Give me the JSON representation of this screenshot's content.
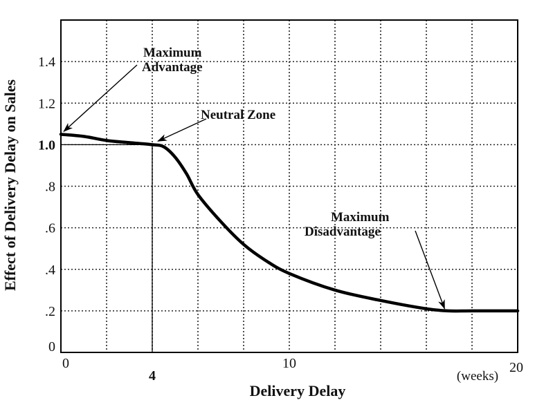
{
  "chart_data": {
    "type": "line",
    "title": "",
    "xlabel": "Delivery Delay",
    "xunit": "(weeks)",
    "ylabel": "Effect of Delivery Delay on Sales",
    "xlim": [
      0,
      20
    ],
    "ylim": [
      0,
      1.6
    ],
    "grid": true,
    "x_ticks": [
      {
        "v": 0,
        "label": "0",
        "bold": false
      },
      {
        "v": 4,
        "label": "4",
        "bold": true
      },
      {
        "v": 10,
        "label": "10",
        "bold": false
      },
      {
        "v": 20,
        "label": "20",
        "bold": false
      }
    ],
    "y_ticks": [
      {
        "v": 0,
        "label": "0",
        "bold": false
      },
      {
        "v": 0.2,
        "label": ".2",
        "bold": false
      },
      {
        "v": 0.4,
        "label": ".4",
        "bold": false
      },
      {
        "v": 0.6,
        "label": ".6",
        "bold": false
      },
      {
        "v": 0.8,
        "label": ".8",
        "bold": false
      },
      {
        "v": 1.0,
        "label": "1.0",
        "bold": true
      },
      {
        "v": 1.2,
        "label": "1.2",
        "bold": false
      },
      {
        "v": 1.4,
        "label": "1.4",
        "bold": false
      }
    ],
    "x": [
      0,
      1,
      2,
      3,
      4,
      4.5,
      5,
      5.5,
      6,
      7,
      8,
      9,
      10,
      12,
      14,
      16,
      17,
      18,
      20
    ],
    "values": [
      1.05,
      1.04,
      1.02,
      1.01,
      1.0,
      0.99,
      0.94,
      0.86,
      0.76,
      0.63,
      0.52,
      0.44,
      0.38,
      0.3,
      0.25,
      0.21,
      0.2,
      0.2,
      0.2
    ],
    "reference": {
      "x": 4,
      "y": 1.0
    },
    "annotations": [
      {
        "lines": [
          "Maximum",
          "Advantage"
        ],
        "x": 0,
        "y": 1.05
      },
      {
        "lines": [
          "Neutral Zone"
        ],
        "x": 4,
        "y": 1.0
      },
      {
        "lines": [
          "Maximum",
          "Disadvantage"
        ],
        "x": 16.8,
        "y": 0.2
      }
    ]
  }
}
